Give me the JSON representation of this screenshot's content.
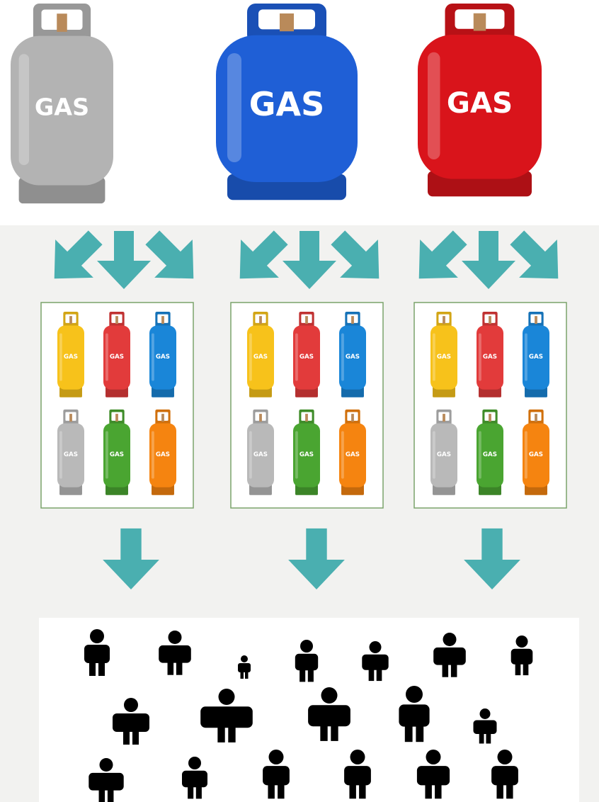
{
  "cylinders": [
    {
      "label": "GAS",
      "color": "#b3b3b3"
    },
    {
      "label": "GAS",
      "color": "#1f5fd6"
    },
    {
      "label": "GAS",
      "color": "#d9141b"
    }
  ],
  "distributors": [
    {
      "cylinders": [
        {
          "label": "GAS",
          "color": "#f7c21b"
        },
        {
          "label": "GAS",
          "color": "#e23b3b"
        },
        {
          "label": "GAS",
          "color": "#1a86d8"
        },
        {
          "label": "GAS",
          "color": "#b9b9b9"
        },
        {
          "label": "GAS",
          "color": "#4aa531"
        },
        {
          "label": "GAS",
          "color": "#f58410"
        }
      ]
    },
    {
      "cylinders": [
        {
          "label": "GAS",
          "color": "#f7c21b"
        },
        {
          "label": "GAS",
          "color": "#e23b3b"
        },
        {
          "label": "GAS",
          "color": "#1a86d8"
        },
        {
          "label": "GAS",
          "color": "#b9b9b9"
        },
        {
          "label": "GAS",
          "color": "#4aa531"
        },
        {
          "label": "GAS",
          "color": "#f58410"
        }
      ]
    },
    {
      "cylinders": [
        {
          "label": "GAS",
          "color": "#f7c21b"
        },
        {
          "label": "GAS",
          "color": "#e23b3b"
        },
        {
          "label": "GAS",
          "color": "#1a86d8"
        },
        {
          "label": "GAS",
          "color": "#b9b9b9"
        },
        {
          "label": "GAS",
          "color": "#4aa531"
        },
        {
          "label": "GAS",
          "color": "#f58410"
        }
      ]
    }
  ]
}
